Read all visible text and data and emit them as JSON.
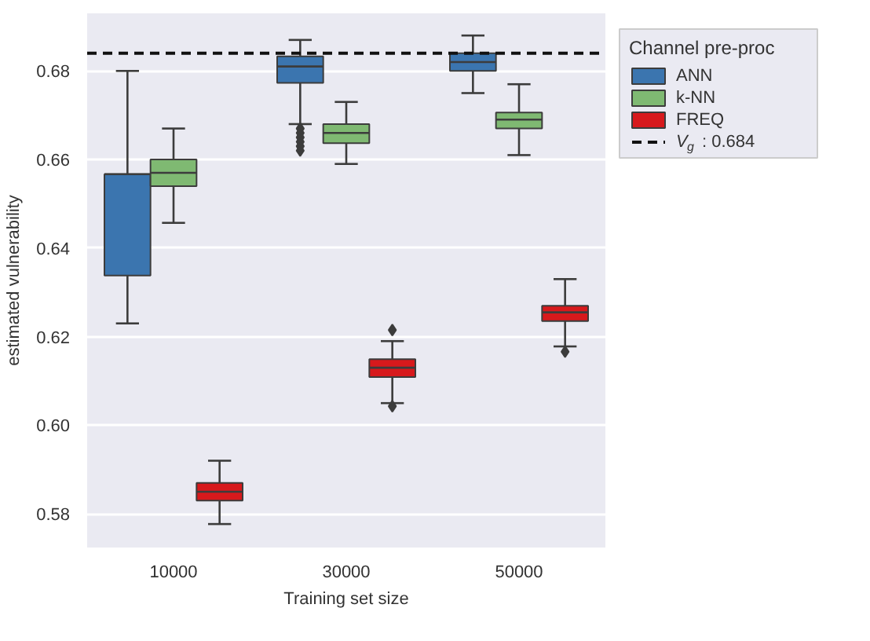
{
  "chart_data": {
    "type": "box",
    "xlabel": "Training set size",
    "ylabel": "estimated vulnerability",
    "legend_title": "Channel pre-proc",
    "categories": [
      "10000",
      "30000",
      "50000"
    ],
    "ylim": [
      0.5724,
      0.693
    ],
    "yticks": [
      {
        "value": 0.58,
        "label": "0.58"
      },
      {
        "value": 0.6,
        "label": "0.60"
      },
      {
        "value": 0.62,
        "label": "0.62"
      },
      {
        "value": 0.64,
        "label": "0.64"
      },
      {
        "value": 0.66,
        "label": "0.66"
      },
      {
        "value": 0.68,
        "label": "0.68"
      }
    ],
    "grid": "y",
    "legend": "top right",
    "marker": "diamond",
    "series": [
      {
        "name": "ANN",
        "color": "#3b75af",
        "boxes": [
          {
            "low": 0.623,
            "q1": 0.6338,
            "median": 0.6567,
            "q3": 0.6567,
            "high": 0.68
          },
          {
            "low": 0.668,
            "q1": 0.6773,
            "median": 0.681,
            "q3": 0.6833,
            "high": 0.687,
            "outliers": [
              0.667,
              0.666,
              0.665,
              0.664,
              0.663,
              0.662
            ]
          },
          {
            "low": 0.675,
            "q1": 0.68,
            "median": 0.682,
            "q3": 0.684,
            "high": 0.688
          }
        ]
      },
      {
        "name": "k-NN",
        "color": "#7fb972",
        "boxes": [
          {
            "low": 0.6457,
            "q1": 0.654,
            "median": 0.657,
            "q3": 0.66,
            "high": 0.667
          },
          {
            "low": 0.659,
            "q1": 0.6637,
            "median": 0.666,
            "q3": 0.668,
            "high": 0.673
          },
          {
            "low": 0.661,
            "q1": 0.667,
            "median": 0.669,
            "q3": 0.6706,
            "high": 0.677
          }
        ]
      },
      {
        "name": "FREQ",
        "color": "#d7191c",
        "boxes": [
          {
            "low": 0.5777,
            "q1": 0.583,
            "median": 0.585,
            "q3": 0.587,
            "high": 0.592
          },
          {
            "low": 0.605,
            "q1": 0.6109,
            "median": 0.613,
            "q3": 0.6149,
            "high": 0.619,
            "outliers": [
              0.6215,
              0.6043
            ]
          },
          {
            "low": 0.6178,
            "q1": 0.6235,
            "median": 0.6255,
            "q3": 0.627,
            "high": 0.633,
            "outliers": [
              0.6166
            ]
          }
        ]
      }
    ],
    "ref_lines": [
      {
        "axis": "y",
        "value": 0.684,
        "label": "V$_{g}$ : 0.684",
        "color": "#111111",
        "line_style": "dashed"
      }
    ]
  }
}
